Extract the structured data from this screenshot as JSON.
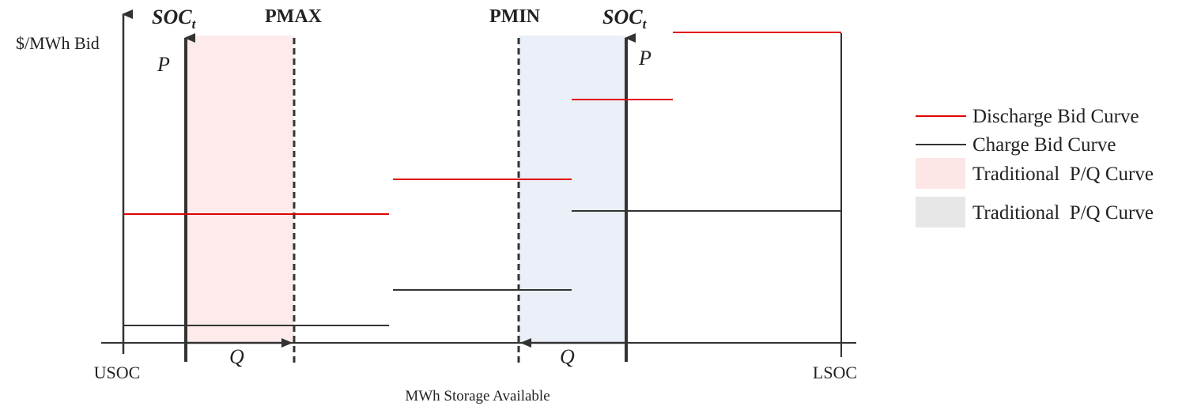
{
  "diagram": {
    "y_axis_label": "$/MWh Bid",
    "x_axis_label": "MWh Storage Available",
    "usoc_label": "USOC",
    "lsoc_label": "LSOC",
    "soc_left": {
      "base": "SOC",
      "sub": "t"
    },
    "soc_right": {
      "base": "SOC",
      "sub": "t"
    },
    "pmax_label": "PMAX",
    "pmin_label": "PMIN",
    "p_left": "P",
    "p_right": "P",
    "q_left": "Q",
    "q_right": "Q"
  },
  "legend": {
    "items": [
      {
        "label": "Discharge Bid Curve",
        "kind": "line",
        "color": "#e00000"
      },
      {
        "label": "Charge Bid Curve",
        "kind": "line",
        "color": "#333333"
      },
      {
        "label": "Traditional  P/Q Curve",
        "kind": "box",
        "color": "#fde6e6"
      },
      {
        "label": "Traditional  P/Q Curve",
        "kind": "box",
        "color": "#e7e7e7"
      }
    ]
  },
  "colors": {
    "discharge": "#e00000",
    "charge": "#333333",
    "pmax_region": "#fdebeb",
    "pmin_region": "#eaeff8",
    "axis": "#333333"
  }
}
